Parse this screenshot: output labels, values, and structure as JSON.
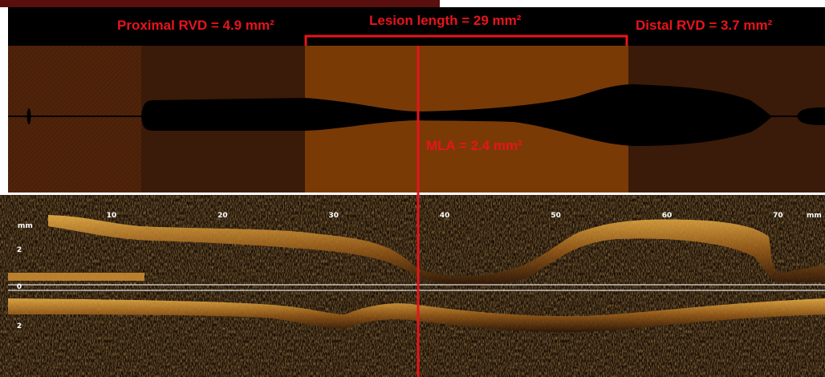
{
  "annotations": {
    "proximal": "Proximal RVD = 4.9 mm²",
    "lesion": "Lesion length = 29 mm²",
    "distal": "Distal RVD = 3.7 mm²",
    "mla": "MLA = 2.4 mm²"
  },
  "oct": {
    "x_ticks": [
      10,
      20,
      30,
      40,
      50,
      60,
      70
    ],
    "x_unit": "mm",
    "y_unit": "mm",
    "y_ticks": [
      2,
      0,
      2
    ]
  }
}
